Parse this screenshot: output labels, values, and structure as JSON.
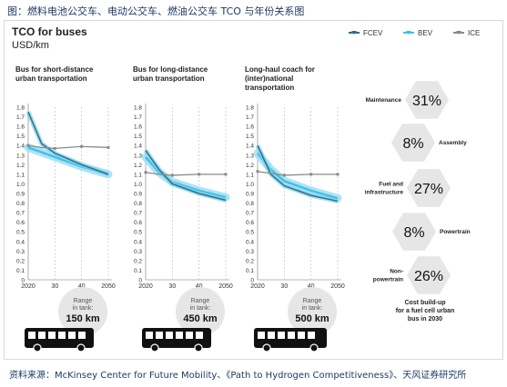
{
  "caption": "图：燃料电池公交车、电动公交车、燃油公交车 TCO 与年份关系图",
  "source": "资料来源：McKinsey Center for Future Mobility、《Path to Hydrogen Competitiveness》、天风证券研究所",
  "title": "TCO for buses",
  "subtitle": "USD/km",
  "legend": [
    {
      "name": "FCEV",
      "color": "#2f6f8f"
    },
    {
      "name": "BEV",
      "color": "#41c1e8"
    },
    {
      "name": "ICE",
      "color": "#8a8a8a"
    }
  ],
  "chart_data": [
    {
      "type": "line",
      "title": "Bus for short-distance urban transportation",
      "x": [
        2020,
        2025,
        2030,
        2040,
        2050
      ],
      "xticks": [
        "2020",
        "30",
        "40",
        "2050"
      ],
      "yticks": [
        "0",
        "0.1",
        "0.2",
        "0.3",
        "0.4",
        "0.5",
        "0.6",
        "0.7",
        "0.8",
        "0.9",
        "1.0",
        "1.1",
        "1.2",
        "1.3",
        "1.4",
        "1.5",
        "1.6",
        "1.7",
        "1.8"
      ],
      "ylim": [
        0,
        1.8
      ],
      "series": [
        {
          "name": "FCEV",
          "values": [
            1.75,
            1.42,
            1.32,
            1.2,
            1.1
          ]
        },
        {
          "name": "BEV",
          "values": [
            1.38,
            1.33,
            1.28,
            1.18,
            1.1
          ]
        },
        {
          "name": "ICE",
          "values": [
            1.4,
            1.38,
            1.37,
            1.39,
            1.38
          ]
        }
      ],
      "range_label": "Range\nin tank:",
      "range_value": "150 km"
    },
    {
      "type": "line",
      "title": "Bus for long-distance urban transportation",
      "x": [
        2020,
        2025,
        2030,
        2040,
        2050
      ],
      "xticks": [
        "2020",
        "30",
        "40",
        "2050"
      ],
      "yticks": [
        "0",
        "0.1",
        "0.2",
        "0.3",
        "0.4",
        "0.5",
        "0.6",
        "0.7",
        "0.8",
        "0.9",
        "1.0",
        "1.1",
        "1.2",
        "1.3",
        "1.4",
        "1.5",
        "1.6",
        "1.7",
        "1.8"
      ],
      "ylim": [
        0,
        1.8
      ],
      "series": [
        {
          "name": "FCEV",
          "values": [
            1.35,
            1.15,
            1.0,
            0.9,
            0.83
          ]
        },
        {
          "name": "BEV",
          "values": [
            1.28,
            1.12,
            1.02,
            0.93,
            0.86
          ]
        },
        {
          "name": "ICE",
          "values": [
            1.12,
            1.1,
            1.09,
            1.1,
            1.1
          ]
        }
      ],
      "range_label": "Range\nin tank:",
      "range_value": "450 km"
    },
    {
      "type": "line",
      "title": "Long-haul coach for (inter)national transportation",
      "x": [
        2020,
        2025,
        2030,
        2040,
        2050
      ],
      "xticks": [
        "2020",
        "30",
        "40",
        "2050"
      ],
      "yticks": [
        "0",
        "0.1",
        "0.2",
        "0.3",
        "0.4",
        "0.5",
        "0.6",
        "0.7",
        "0.8",
        "0.9",
        "1.0",
        "1.1",
        "1.2",
        "1.3",
        "1.4",
        "1.5",
        "1.6",
        "1.7",
        "1.8"
      ],
      "ylim": [
        0,
        1.8
      ],
      "series": [
        {
          "name": "FCEV",
          "values": [
            1.4,
            1.1,
            0.98,
            0.88,
            0.82
          ]
        },
        {
          "name": "BEV",
          "values": [
            1.32,
            1.15,
            1.03,
            0.93,
            0.85
          ]
        },
        {
          "name": "ICE",
          "values": [
            1.13,
            1.11,
            1.09,
            1.1,
            1.1
          ]
        }
      ],
      "range_label": "Range\nin tank:",
      "range_value": "500 km"
    },
    {
      "type": "table",
      "title": "Cost build-up for a fuel cell urban bus in 2030",
      "items": [
        {
          "label": "Maintenance",
          "value": "31%",
          "side": "left"
        },
        {
          "label": "Assembly",
          "value": "8%",
          "side": "right"
        },
        {
          "label": "Fuel and infrastructure",
          "value": "27%",
          "side": "left"
        },
        {
          "label": "Powertrain",
          "value": "8%",
          "side": "right"
        },
        {
          "label": "Non-powertrain",
          "value": "26%",
          "side": "left"
        }
      ]
    }
  ]
}
